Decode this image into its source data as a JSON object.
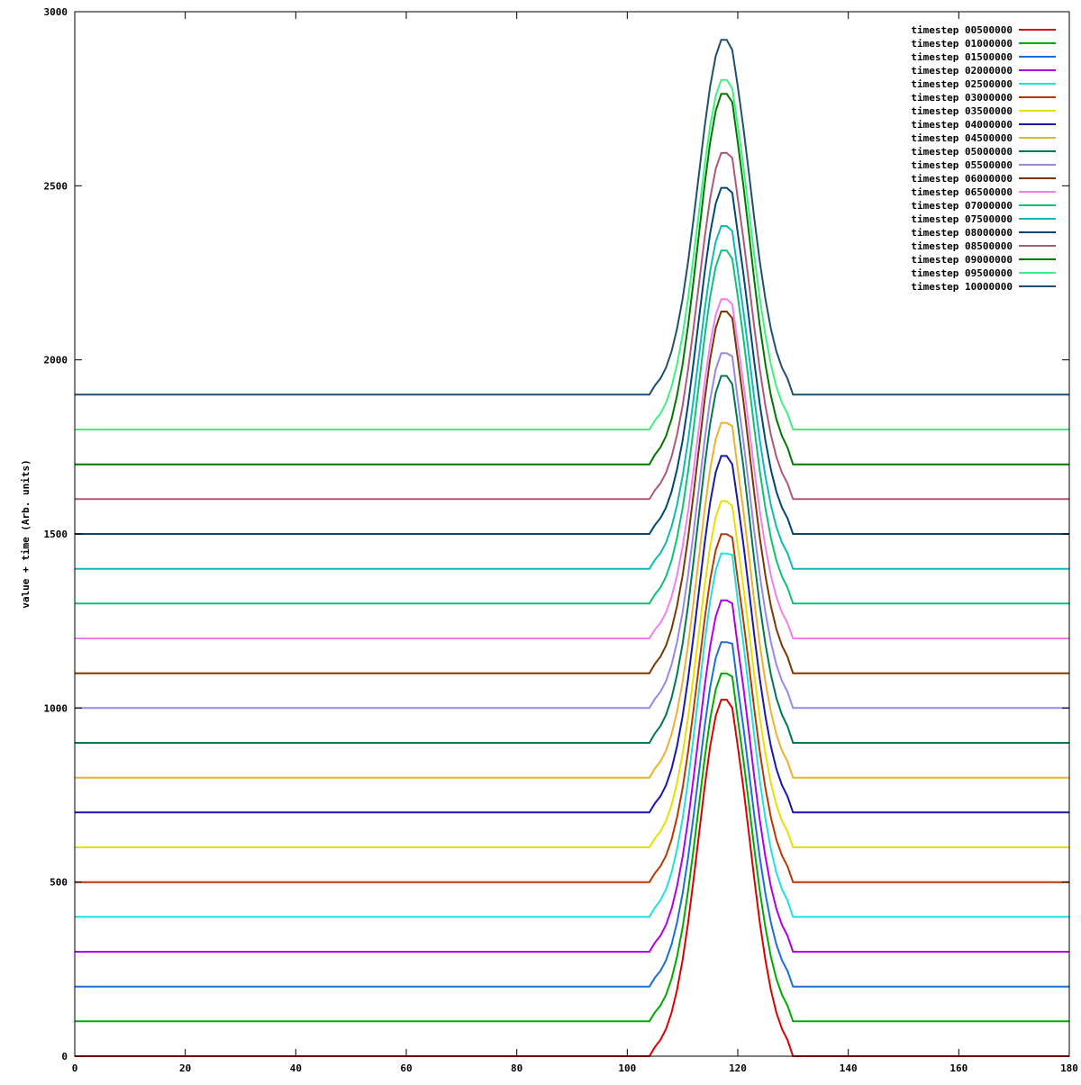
{
  "chart_data": {
    "type": "line",
    "title": "",
    "xlabel": "",
    "ylabel": "value + time (Arb. units)",
    "xlim": [
      0,
      180
    ],
    "ylim": [
      0,
      3000
    ],
    "x_ticks": [
      0,
      20,
      40,
      60,
      80,
      100,
      120,
      140,
      160,
      180
    ],
    "y_ticks": [
      0,
      500,
      1000,
      1500,
      2000,
      2500,
      3000
    ],
    "grid": false,
    "legend_position": "top-right",
    "series": [
      {
        "name": "timestep 00500000",
        "color": "#dd0000",
        "peaks": [
          1030,
          1000
        ]
      },
      {
        "name": "timestep 01000000",
        "color": "#00aa00",
        "peaks": [
          1105,
          1090
        ]
      },
      {
        "name": "timestep 01500000",
        "color": "#1870d8",
        "peaks": [
          1195,
          1185
        ]
      },
      {
        "name": "timestep 02000000",
        "color": "#b000e8",
        "peaks": [
          1315,
          1300
        ]
      },
      {
        "name": "timestep 02500000",
        "color": "#20e0e0",
        "peaks": [
          1450,
          1440
        ]
      },
      {
        "name": "timestep 03000000",
        "color": "#b83800",
        "peaks": [
          1505,
          1490
        ]
      },
      {
        "name": "timestep 03500000",
        "color": "#e8e000",
        "peaks": [
          1600,
          1580
        ]
      },
      {
        "name": "timestep 04000000",
        "color": "#1818b0",
        "peaks": [
          1730,
          1700
        ]
      },
      {
        "name": "timestep 04500000",
        "color": "#f0b030",
        "peaks": [
          1825,
          1810
        ]
      },
      {
        "name": "timestep 05000000",
        "color": "#007850",
        "peaks": [
          1960,
          1930
        ]
      },
      {
        "name": "timestep 05500000",
        "color": "#9a88e8",
        "peaks": [
          2025,
          2010
        ]
      },
      {
        "name": "timestep 06000000",
        "color": "#7a3800",
        "peaks": [
          2145,
          2120
        ]
      },
      {
        "name": "timestep 06500000",
        "color": "#f080f0",
        "peaks": [
          2180,
          2160
        ]
      },
      {
        "name": "timestep 07000000",
        "color": "#10c078",
        "peaks": [
          2320,
          2290
        ]
      },
      {
        "name": "timestep 07500000",
        "color": "#10b8b8",
        "peaks": [
          2390,
          2370
        ]
      },
      {
        "name": "timestep 08000000",
        "color": "#004878",
        "peaks": [
          2500,
          2480
        ]
      },
      {
        "name": "timestep 08500000",
        "color": "#b05878",
        "peaks": [
          2600,
          2580
        ]
      },
      {
        "name": "timestep 09000000",
        "color": "#007800",
        "peaks": [
          2770,
          2740
        ]
      },
      {
        "name": "timestep 09500000",
        "color": "#40f080",
        "peaks": [
          2810,
          2780
        ]
      },
      {
        "name": "timestep 10000000",
        "color": "#205070",
        "peaks": [
          2925,
          2890
        ]
      }
    ],
    "series_offset_step": 100,
    "peak_center_x": 117.5,
    "peak_half_width": 11,
    "baseline_left_x": 104,
    "baseline_right_x": 130
  }
}
